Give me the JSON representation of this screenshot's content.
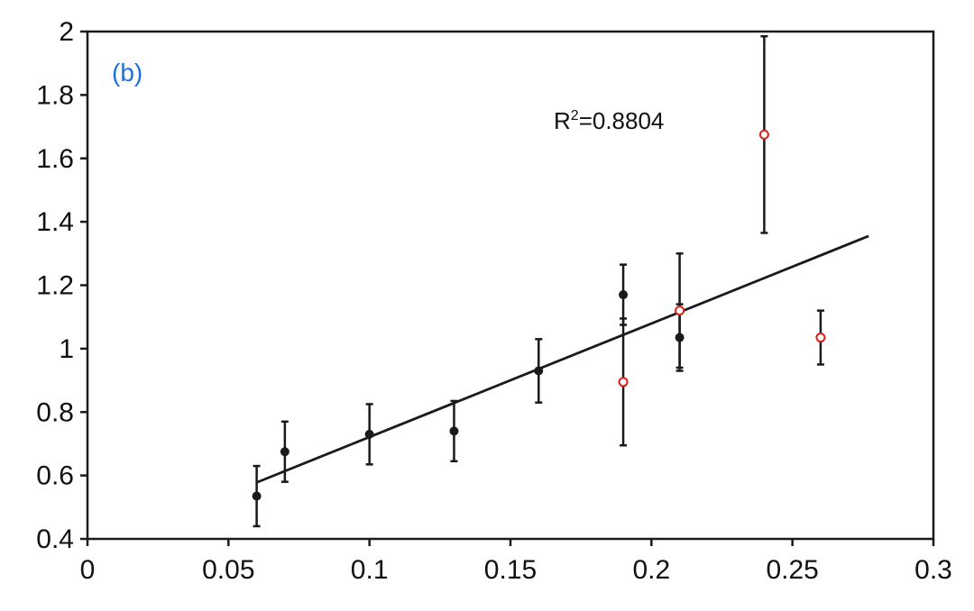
{
  "chart_data": {
    "type": "scatter",
    "panel_label": "(b)",
    "title": "",
    "xlabel": "",
    "ylabel": "",
    "xlim": [
      0,
      0.3
    ],
    "ylim": [
      0.4,
      2
    ],
    "x_ticks": [
      "0",
      "0.05",
      "0.1",
      "0.15",
      "0.2",
      "0.25",
      "0.3"
    ],
    "y_ticks": [
      "0.4",
      "0.6",
      "0.8",
      "1",
      "1.2",
      "1.4",
      "1.6",
      "1.8",
      "2"
    ],
    "grid": false,
    "annotation": {
      "r_prefix": "R",
      "r_sup": "2",
      "r_value": "=0.8804"
    },
    "series": [
      {
        "marker": "filled-circle",
        "color": "#1a1a1a",
        "points": [
          {
            "x": 0.06,
            "y": 0.535,
            "err": 0.095
          },
          {
            "x": 0.07,
            "y": 0.675,
            "err": 0.095
          },
          {
            "x": 0.1,
            "y": 0.73,
            "err": 0.095
          },
          {
            "x": 0.13,
            "y": 0.74,
            "err": 0.095
          },
          {
            "x": 0.16,
            "y": 0.93,
            "err": 0.1
          },
          {
            "x": 0.19,
            "y": 1.17,
            "err": 0.095
          },
          {
            "x": 0.21,
            "y": 1.035,
            "err": 0.105
          }
        ]
      },
      {
        "marker": "open-circle",
        "color": "#e0201b",
        "points": [
          {
            "x": 0.19,
            "y": 0.895,
            "err": 0.2
          },
          {
            "x": 0.21,
            "y": 1.12,
            "err": 0.18
          },
          {
            "x": 0.24,
            "y": 1.675,
            "err": 0.31
          },
          {
            "x": 0.26,
            "y": 1.035,
            "err": 0.085
          }
        ]
      }
    ],
    "fit_line": {
      "x": [
        0.06,
        0.277
      ],
      "y": [
        0.578,
        1.355
      ]
    },
    "colors": {
      "axis": "#1a1a1a",
      "panel_label": "#1f6fe0",
      "open_marker": "#e0201b"
    }
  }
}
